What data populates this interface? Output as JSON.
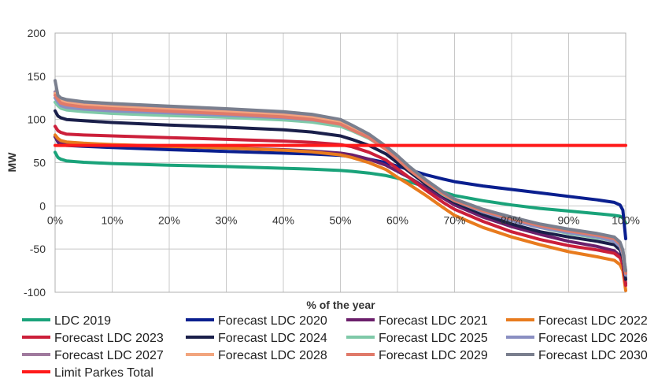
{
  "chart_data": {
    "type": "line",
    "title": "",
    "xlabel": "% of the year",
    "ylabel": "MW",
    "xlim": [
      0,
      100
    ],
    "ylim": [
      -100,
      200
    ],
    "x_ticks": [
      "0%",
      "10%",
      "20%",
      "30%",
      "40%",
      "50%",
      "60%",
      "70%",
      "80%",
      "90%",
      "100%"
    ],
    "y_ticks": [
      "200",
      "150",
      "100",
      "50",
      "0",
      "-50",
      "-100"
    ],
    "grid": true,
    "legend_position": "bottom",
    "x": [
      0,
      0.5,
      1,
      2,
      5,
      10,
      20,
      30,
      40,
      45,
      50,
      52,
      55,
      58,
      60,
      62,
      65,
      68,
      70,
      75,
      80,
      85,
      90,
      95,
      98,
      99,
      99.5,
      100
    ],
    "series": [
      {
        "name": "LDC 2019",
        "color": "#1aa37a",
        "values": [
          62,
          56,
          54,
          52,
          50.5,
          49,
          47,
          45.5,
          43.5,
          42.5,
          41,
          40,
          38,
          35,
          32,
          28,
          22,
          16,
          12,
          6,
          1,
          -3,
          -6,
          -9,
          -11,
          -12,
          -14,
          -20
        ]
      },
      {
        "name": "Forecast LDC 2020",
        "color": "#0a1f8f",
        "values": [
          80,
          74,
          71,
          70,
          69,
          67.5,
          65,
          63,
          61,
          60,
          58.5,
          57,
          54,
          50,
          46,
          42,
          36,
          31,
          28,
          23,
          19,
          15,
          11,
          7,
          4,
          1,
          -5,
          -38
        ]
      },
      {
        "name": "Forecast LDC 2021",
        "color": "#6b1f6b",
        "values": [
          80,
          75,
          73,
          72,
          71,
          70,
          68.5,
          67,
          65,
          63.5,
          61,
          59,
          54,
          47,
          40,
          33,
          21,
          9,
          1,
          -13,
          -24,
          -33,
          -41,
          -47,
          -52,
          -58,
          -66,
          -90
        ]
      },
      {
        "name": "Forecast LDC 2022",
        "color": "#e87b1e",
        "values": [
          82,
          78,
          75.5,
          74,
          72.5,
          71,
          69,
          67,
          64.5,
          62.5,
          59,
          56,
          50,
          42,
          33,
          25,
          12,
          -2,
          -11,
          -25,
          -36,
          -45,
          -53,
          -59,
          -63,
          -68,
          -75,
          -98
        ]
      },
      {
        "name": "Forecast LDC 2023",
        "color": "#cc1f3a",
        "values": [
          92,
          87,
          85,
          83,
          82,
          81,
          79,
          77,
          75,
          73.5,
          71,
          68.5,
          62,
          53,
          43,
          33,
          18,
          4,
          -4,
          -18,
          -30,
          -39,
          -46,
          -51,
          -55,
          -60,
          -68,
          -92
        ]
      },
      {
        "name": "Forecast LDC 2024",
        "color": "#1a1f4a",
        "values": [
          110,
          104,
          102,
          100,
          98.5,
          96.5,
          93.5,
          91,
          88,
          85.5,
          81,
          77,
          70,
          60,
          50,
          40,
          25,
          12,
          4,
          -10,
          -21,
          -30,
          -36,
          -41,
          -45,
          -51,
          -60,
          -85
        ]
      },
      {
        "name": "Forecast LDC 2025",
        "color": "#7fc9a8",
        "values": [
          120,
          116,
          113,
          111,
          109,
          107,
          104.5,
          102.5,
          99.5,
          97,
          92,
          87,
          78,
          66,
          55,
          43,
          27,
          13,
          6,
          -7,
          -17,
          -25,
          -32,
          -37,
          -41,
          -47,
          -56,
          -80
        ]
      },
      {
        "name": "Forecast LDC 2026",
        "color": "#8a8fc2",
        "values": [
          125,
          120,
          116,
          114,
          112,
          110,
          107.5,
          105,
          102,
          99.5,
          95,
          89.5,
          80,
          67,
          56,
          44,
          28,
          14,
          6,
          -7,
          -17,
          -25,
          -31,
          -36,
          -41,
          -47,
          -56,
          -80
        ]
      },
      {
        "name": "Forecast LDC 2027",
        "color": "#a07a9e",
        "values": [
          132,
          127,
          123,
          121,
          118.5,
          116.5,
          113.5,
          110.5,
          107,
          104,
          98.5,
          92,
          82,
          68,
          57,
          45,
          29,
          15,
          7,
          -5,
          -14,
          -22,
          -28,
          -33,
          -37,
          -43,
          -52,
          -76
        ]
      },
      {
        "name": "Forecast LDC 2028",
        "color": "#f2a57e",
        "values": [
          130,
          125,
          121,
          119,
          116.5,
          114.5,
          111.5,
          108.5,
          105,
          102,
          96.5,
          90,
          80,
          66,
          55,
          43,
          28,
          15,
          7,
          -5,
          -14,
          -22,
          -28,
          -33,
          -37,
          -43,
          -52,
          -76
        ]
      },
      {
        "name": "Forecast LDC 2029",
        "color": "#e07a6a",
        "values": [
          128,
          123,
          119,
          117,
          114.5,
          112.5,
          109.5,
          106.5,
          103,
          100,
          94.5,
          88,
          79,
          65,
          54,
          42,
          27,
          14,
          6,
          -6,
          -15,
          -23,
          -29,
          -34,
          -38,
          -44,
          -53,
          -78
        ]
      },
      {
        "name": "Forecast LDC 2030",
        "color": "#7a7f8e",
        "values": [
          145,
          128,
          125,
          123,
          120.5,
          118.5,
          115.5,
          112.5,
          109,
          106,
          100,
          93.5,
          83,
          69,
          58,
          46,
          30,
          16,
          8,
          -4,
          -13,
          -21,
          -27,
          -32,
          -36,
          -42,
          -51,
          -75
        ]
      },
      {
        "name": "Limit Parkes Total",
        "color": "#ff1a1a",
        "values": [
          70,
          70,
          70,
          70,
          70,
          70,
          70,
          70,
          70,
          70,
          70,
          70,
          70,
          70,
          70,
          70,
          70,
          70,
          70,
          70,
          70,
          70,
          70,
          70,
          70,
          70,
          70,
          70
        ]
      }
    ]
  }
}
